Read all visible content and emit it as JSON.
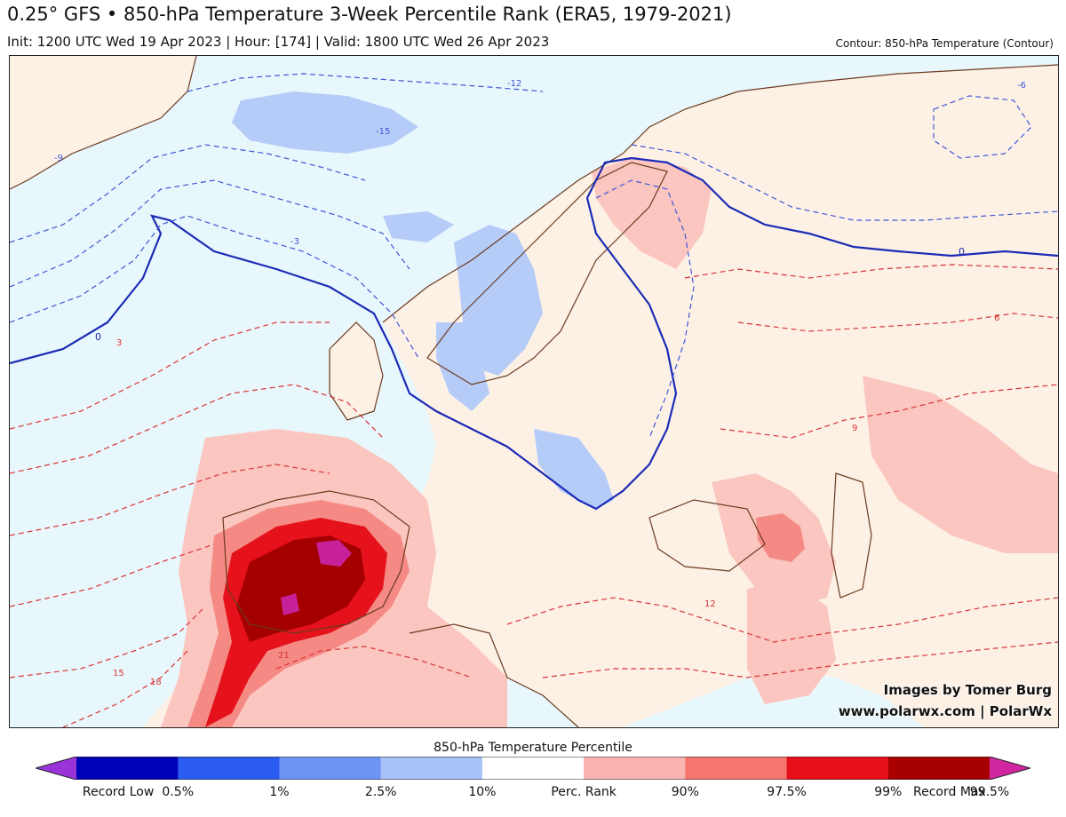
{
  "header": {
    "title": "0.25° GFS • 850-hPa Temperature 3-Week Percentile Rank (ERA5, 1979-2021)",
    "subtitle": "Init: 1200 UTC Wed 19 Apr 2023 | Hour: [174] | Valid: 1800 UTC Wed 26 Apr 2023",
    "contour_note": "Contour: 850-hPa Temperature (Contour)"
  },
  "map": {
    "contour_labels": [
      "-12",
      "-15",
      "-9",
      "-6",
      "-3",
      "0",
      "3",
      "6",
      "9",
      "12",
      "15",
      "18",
      "21"
    ],
    "credit_line1": "Images by Tomer Burg",
    "credit_line2": "www.polarwx.com | PolarWx"
  },
  "legend": {
    "title": "850-hPa Temperature Percentile",
    "labels": [
      "Record Low",
      "0.5%",
      "1%",
      "2.5%",
      "10%",
      "Perc. Rank",
      "90%",
      "97.5%",
      "99%",
      "99.5%",
      "Record Max"
    ],
    "colors": [
      "#9a34d8",
      "#0000b8",
      "#2a5cf0",
      "#6e95f5",
      "#a7c2f6",
      "#ffffff",
      "#f9b3b0",
      "#f5766f",
      "#e60f1a",
      "#a80000",
      "#d0269f"
    ]
  }
}
